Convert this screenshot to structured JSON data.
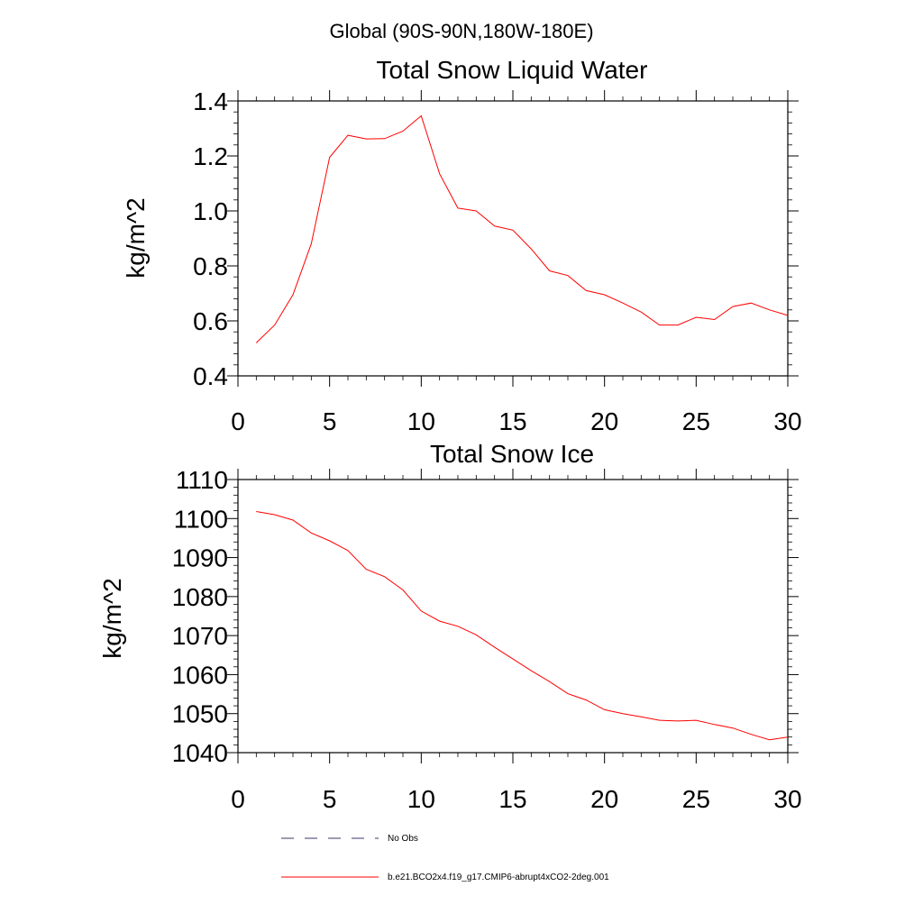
{
  "page": {
    "suptitle": "Global (90S-90N,180W-180E)"
  },
  "chart_data": [
    {
      "type": "line",
      "title": "Total Snow Liquid Water",
      "xlabel": "",
      "ylabel": "kg/m^2",
      "xlim": [
        0,
        30
      ],
      "ylim": [
        0.4,
        1.4
      ],
      "xticks": [
        0,
        5,
        10,
        15,
        20,
        25,
        30
      ],
      "xtick_labels": [
        "0",
        "5",
        "10",
        "15",
        "20",
        "25",
        "30"
      ],
      "yticks": [
        0.4,
        0.6,
        0.8,
        1.0,
        1.2,
        1.4
      ],
      "ytick_labels": [
        "0.4",
        "0.6",
        "0.8",
        "1.0",
        "1.2",
        "1.4"
      ],
      "grid": false,
      "series": [
        {
          "name": "b.e21.BCO2x4.f19_g17.CMIP6-abrupt4xCO2-2deg.001",
          "color": "#ff0000",
          "x": [
            1,
            2,
            3,
            4,
            5,
            6,
            7,
            8,
            9,
            10,
            11,
            12,
            13,
            14,
            15,
            16,
            17,
            18,
            19,
            20,
            21,
            22,
            23,
            24,
            25,
            26,
            27,
            28,
            29,
            30
          ],
          "values": [
            0.52,
            0.585,
            0.695,
            0.88,
            1.195,
            1.275,
            1.262,
            1.263,
            1.29,
            1.346,
            1.135,
            1.01,
            1.0,
            0.945,
            0.93,
            0.862,
            0.782,
            0.765,
            0.71,
            0.695,
            0.665,
            0.632,
            0.585,
            0.585,
            0.613,
            0.605,
            0.652,
            0.665,
            0.64,
            0.62
          ]
        }
      ]
    },
    {
      "type": "line",
      "title": "Total Snow Ice",
      "xlabel": "",
      "ylabel": "kg/m^2",
      "xlim": [
        0,
        30
      ],
      "ylim": [
        1040,
        1110
      ],
      "xticks": [
        0,
        5,
        10,
        15,
        20,
        25,
        30
      ],
      "xtick_labels": [
        "0",
        "5",
        "10",
        "15",
        "20",
        "25",
        "30"
      ],
      "yticks": [
        1040,
        1050,
        1060,
        1070,
        1080,
        1090,
        1100,
        1110
      ],
      "ytick_labels": [
        "1040",
        "1050",
        "1060",
        "1070",
        "1080",
        "1090",
        "1100",
        "1110"
      ],
      "grid": false,
      "series": [
        {
          "name": "b.e21.BCO2x4.f19_g17.CMIP6-abrupt4xCO2-2deg.001",
          "color": "#ff0000",
          "x": [
            1,
            2,
            3,
            4,
            5,
            6,
            7,
            8,
            9,
            10,
            11,
            12,
            13,
            14,
            15,
            16,
            17,
            18,
            19,
            20,
            21,
            22,
            23,
            24,
            25,
            26,
            27,
            28,
            29,
            30
          ],
          "values": [
            1101.8,
            1101.0,
            1099.6,
            1096.3,
            1094.3,
            1091.8,
            1087.0,
            1085.1,
            1081.7,
            1076.3,
            1073.7,
            1072.4,
            1070.2,
            1067.0,
            1064.0,
            1061.0,
            1058.2,
            1055.1,
            1053.5,
            1051.0,
            1050.0,
            1049.2,
            1048.3,
            1048.1,
            1048.3,
            1047.2,
            1046.3,
            1044.7,
            1043.3,
            1044.0
          ]
        }
      ]
    }
  ],
  "legend": {
    "placement": "bottom",
    "entries": [
      {
        "label": "No Obs",
        "style": "dashed",
        "color": "#3a3a6a"
      },
      {
        "label": "b.e21.BCO2x4.f19_g17.CMIP6-abrupt4xCO2-2deg.001",
        "style": "solid",
        "color": "#ff0000"
      }
    ]
  }
}
